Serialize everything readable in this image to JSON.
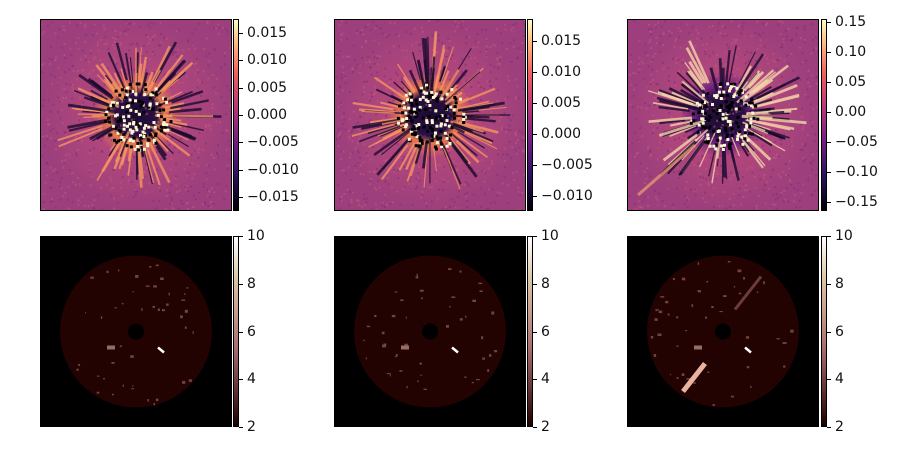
{
  "figure": {
    "panels": [
      {
        "name": "residual-1",
        "kind": "residual",
        "colormap": "magma",
        "colorbar_ticks": [
          "0.015",
          "0.010",
          "0.005",
          "0.000",
          "−0.005",
          "−0.010",
          "−0.015"
        ],
        "colorbar_range": [
          -0.0175,
          0.0175
        ]
      },
      {
        "name": "residual-2",
        "kind": "residual",
        "colormap": "magma",
        "colorbar_ticks": [
          "0.015",
          "0.010",
          "0.005",
          "0.000",
          "−0.005",
          "−0.010"
        ],
        "colorbar_range": [
          -0.0125,
          0.0185
        ]
      },
      {
        "name": "residual-3",
        "kind": "residual",
        "colormap": "magma",
        "colorbar_ticks": [
          "0.15",
          "0.10",
          "0.05",
          "0.00",
          "−0.05",
          "−0.10",
          "−0.15"
        ],
        "colorbar_range": [
          -0.165,
          0.155
        ]
      },
      {
        "name": "snr-map-1",
        "kind": "snr",
        "colormap": "pink",
        "colorbar_ticks": [
          "10",
          "8",
          "6",
          "4",
          "2"
        ],
        "colorbar_range": [
          2,
          10
        ]
      },
      {
        "name": "snr-map-2",
        "kind": "snr",
        "colormap": "pink",
        "colorbar_ticks": [
          "10",
          "8",
          "6",
          "4",
          "2"
        ],
        "colorbar_range": [
          2,
          10
        ]
      },
      {
        "name": "snr-map-3",
        "kind": "snr",
        "colormap": "pink",
        "colorbar_ticks": [
          "10",
          "8",
          "6",
          "4",
          "2"
        ],
        "colorbar_range": [
          2,
          10
        ]
      }
    ]
  }
}
